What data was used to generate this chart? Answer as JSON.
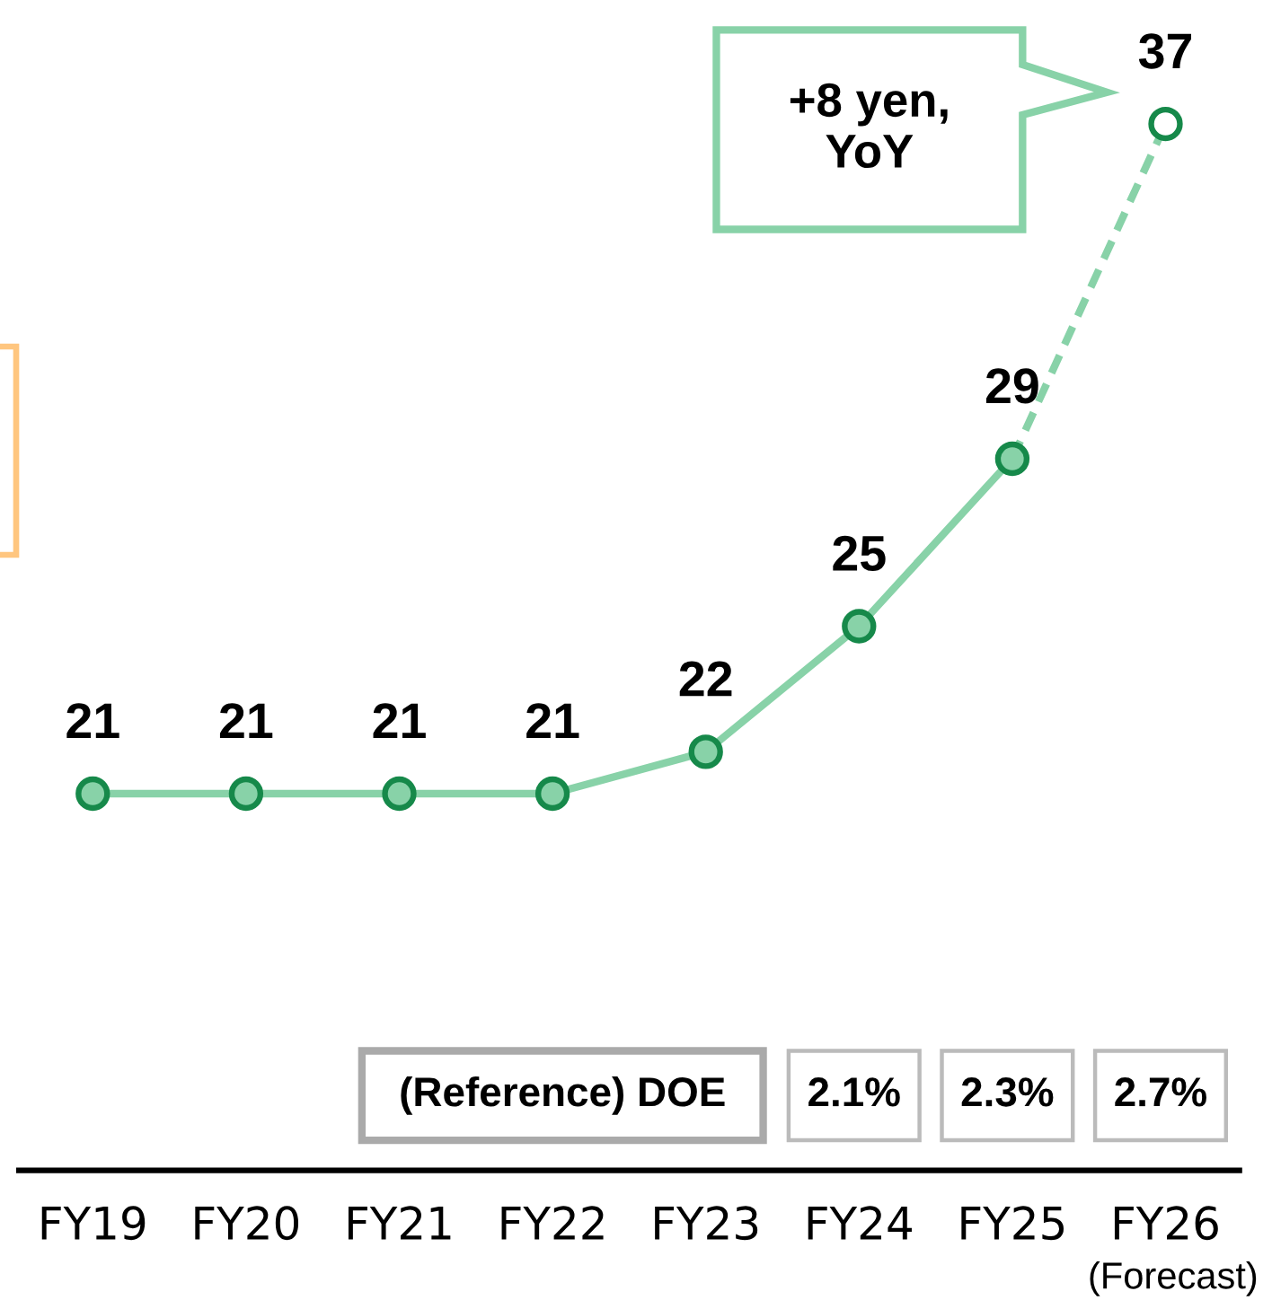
{
  "chart_data": {
    "type": "line",
    "categories": [
      "FY19",
      "FY20",
      "FY21",
      "FY22",
      "FY23",
      "FY24",
      "FY25",
      "FY26\n(Forecast)"
    ],
    "tick_labels": "x",
    "series": [
      {
        "color": "#88d2a8",
        "line_style": "solid",
        "marker": "none",
        "values": [
          21,
          21,
          21,
          21,
          22,
          25,
          29,
          null
        ]
      },
      {
        "color": "#88d2a8",
        "line_style": "dashed",
        "marker": "none",
        "values": [
          null,
          null,
          null,
          null,
          null,
          null,
          29,
          37
        ]
      },
      {
        "type": "scatter",
        "color": "#16894a",
        "marker": "circle",
        "colors": [
          "#88d2a8",
          "#88d2a8",
          "#88d2a8",
          "#88d2a8",
          "#88d2a8",
          "#88d2a8",
          "#88d2a8",
          "#ffffff"
        ],
        "values": [
          21,
          21,
          21,
          21,
          22,
          25,
          29,
          37
        ],
        "value_labels": [
          "21",
          "21",
          "21",
          "21",
          "22",
          "25",
          "29",
          "37"
        ]
      }
    ],
    "annotations": [
      "+8 yen,\nYoY",
      "(Reference) DOE",
      "2.1%",
      "2.3%",
      "2.7%"
    ]
  }
}
